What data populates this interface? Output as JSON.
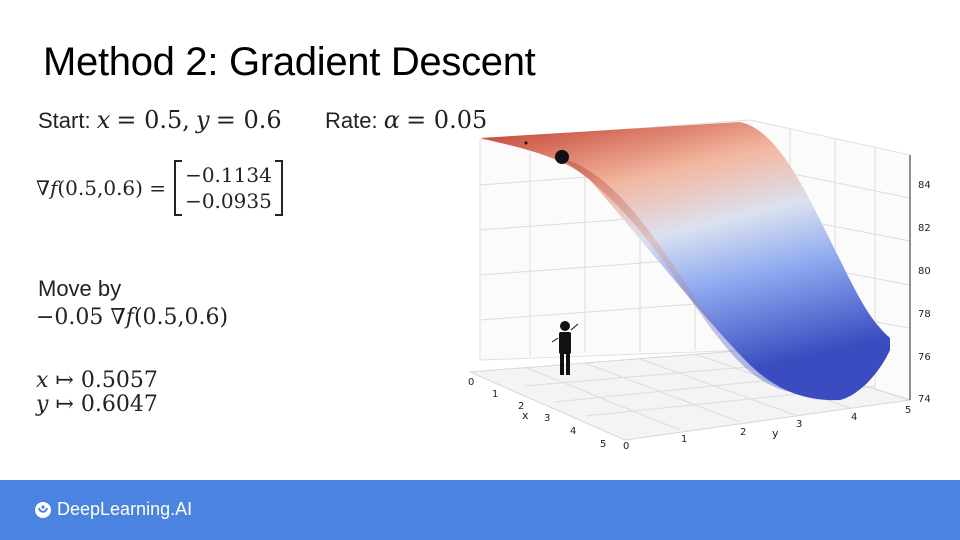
{
  "title": "Method 2: Gradient Descent",
  "start": {
    "label": "Start:",
    "x_var": "x",
    "x_val": "= 0.5,",
    "y_var": "y",
    "y_val": "= 0.6"
  },
  "rate": {
    "label": "Rate:",
    "alpha": "α",
    "value": "= 0.05"
  },
  "gradient": {
    "lhs_nabla": "∇",
    "lhs_f": "f",
    "lhs_args": "(0.5,0.6) =",
    "component_1": "−0.1134",
    "component_2": "−0.0935"
  },
  "move": {
    "label": "Move by",
    "prefix": "−0.05 ∇",
    "f": "f",
    "args": "(0.5,0.6)"
  },
  "update": {
    "x": {
      "var": "x",
      "arrow": "↦ 0.5057"
    },
    "y": {
      "var": "y",
      "arrow": "↦ 0.6047"
    }
  },
  "plot": {
    "x_axis_label": "x",
    "y_axis_label": "y",
    "x_ticks": [
      "0",
      "1",
      "2",
      "3",
      "4",
      "5"
    ],
    "y_ticks": [
      "0",
      "1",
      "2",
      "3",
      "4",
      "5"
    ],
    "z_ticks": [
      "74",
      "76",
      "78",
      "80",
      "82",
      "84"
    ],
    "colormap": [
      "#c0392b",
      "#f3b7a0",
      "#c9d6f2",
      "#5f86e0",
      "#3b4cc0"
    ]
  },
  "footer": {
    "brand": "DeepLearning.AI",
    "color": "#4a83e0"
  }
}
